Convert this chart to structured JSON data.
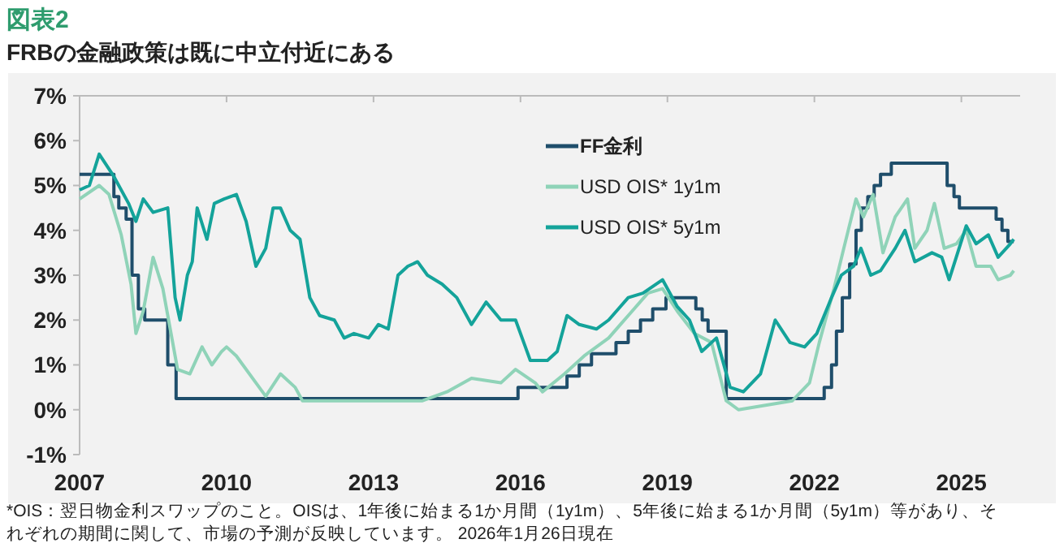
{
  "chart_data": {
    "type": "line",
    "title": "図表2",
    "subtitle": "FRBの金融政策は既に中立付近にある",
    "annotations": [
      "*OIS：翌日物金利スワップのこと。OISは、1年後に始まる1か月間（1y1m）、5年後に始まる1か月間（5y1m）等があり、それぞれの期間に関して、市場の予測が反映しています。 2026年1月26日現在"
    ],
    "xlim": [
      2007,
      2026.2
    ],
    "xticks": [
      2007,
      2010,
      2013,
      2016,
      2019,
      2022,
      2025
    ],
    "ylim": [
      -1,
      7
    ],
    "yticks": [
      {
        "value": -1,
        "label": "-1%"
      },
      {
        "value": 0,
        "label": "0%"
      },
      {
        "value": 1,
        "label": "1%"
      },
      {
        "value": 2,
        "label": "2%"
      },
      {
        "value": 3,
        "label": "3%"
      },
      {
        "value": 4,
        "label": "4%"
      },
      {
        "value": 5,
        "label": "5%"
      },
      {
        "value": 6,
        "label": "6%"
      },
      {
        "value": 7,
        "label": "7%"
      }
    ],
    "grid": false,
    "legend": "top right",
    "series": [
      {
        "name": "FF金利",
        "type": "step",
        "color": "#1f4e6b",
        "x": [
          2007,
          2007.7,
          2007.8,
          2007.95,
          2008.07,
          2008.2,
          2008.33,
          2008.8,
          2008.97,
          2015.95,
          2016.95,
          2017.2,
          2017.45,
          2017.95,
          2018.2,
          2018.45,
          2018.7,
          2018.97,
          2019.58,
          2019.71,
          2019.83,
          2020.2,
          2022.2,
          2022.35,
          2022.45,
          2022.57,
          2022.72,
          2022.85,
          2022.96,
          2023.09,
          2023.22,
          2023.35,
          2023.57,
          2024.71,
          2024.85,
          2024.96,
          2025.71,
          2025.83,
          2025.95,
          2026.07
        ],
        "values": [
          5.25,
          4.75,
          4.5,
          4.25,
          3.0,
          2.25,
          2.0,
          1.0,
          0.25,
          0.5,
          0.75,
          1.0,
          1.25,
          1.5,
          1.75,
          2.0,
          2.25,
          2.5,
          2.25,
          2.0,
          1.75,
          0.25,
          0.5,
          1.0,
          1.75,
          2.5,
          3.25,
          4.0,
          4.5,
          4.75,
          5.0,
          5.25,
          5.5,
          5.0,
          4.75,
          4.5,
          4.25,
          4.0,
          3.75,
          3.75
        ]
      },
      {
        "name": "USD OIS* 1y1m",
        "type": "line",
        "color": "#8fd3b8",
        "x": [
          2007,
          2007.4,
          2007.6,
          2007.85,
          2008.05,
          2008.15,
          2008.3,
          2008.5,
          2008.7,
          2008.9,
          2009.0,
          2009.25,
          2009.5,
          2009.7,
          2009.9,
          2010.0,
          2010.2,
          2010.6,
          2010.8,
          2011.1,
          2011.4,
          2011.55,
          2012.0,
          2013.1,
          2014.0,
          2014.5,
          2015.0,
          2015.6,
          2015.9,
          2016.3,
          2016.45,
          2016.9,
          2017.3,
          2017.8,
          2018.2,
          2018.6,
          2018.9,
          2019.2,
          2019.55,
          2019.9,
          2020.2,
          2020.45,
          2021.0,
          2021.55,
          2021.9,
          2022.1,
          2022.4,
          2022.6,
          2022.85,
          2023.0,
          2023.2,
          2023.4,
          2023.65,
          2023.9,
          2024.05,
          2024.3,
          2024.45,
          2024.65,
          2024.9,
          2025.1,
          2025.3,
          2025.6,
          2025.75,
          2026.0,
          2026.07
        ],
        "values": [
          4.7,
          5.0,
          4.8,
          3.9,
          2.8,
          1.7,
          2.2,
          3.4,
          2.7,
          1.5,
          0.9,
          0.8,
          1.4,
          1.0,
          1.3,
          1.4,
          1.2,
          0.6,
          0.3,
          0.8,
          0.5,
          0.2,
          0.2,
          0.2,
          0.2,
          0.4,
          0.7,
          0.6,
          0.9,
          0.6,
          0.4,
          0.8,
          1.2,
          1.6,
          2.1,
          2.6,
          2.7,
          2.2,
          1.7,
          1.5,
          0.2,
          0.0,
          0.1,
          0.2,
          0.6,
          1.5,
          2.7,
          3.6,
          4.7,
          4.3,
          4.8,
          3.5,
          4.3,
          4.7,
          3.6,
          4.0,
          4.6,
          3.6,
          3.7,
          4.0,
          3.2,
          3.2,
          2.9,
          3.0,
          3.1
        ]
      },
      {
        "name": "USD OIS* 5y1m",
        "type": "line",
        "color": "#14a39a",
        "x": [
          2007,
          2007.2,
          2007.4,
          2007.7,
          2008.0,
          2008.15,
          2008.3,
          2008.5,
          2008.8,
          2008.95,
          2009.05,
          2009.2,
          2009.3,
          2009.4,
          2009.6,
          2009.75,
          2009.95,
          2010.2,
          2010.4,
          2010.6,
          2010.8,
          2010.95,
          2011.1,
          2011.3,
          2011.5,
          2011.7,
          2011.9,
          2012.2,
          2012.4,
          2012.6,
          2012.9,
          2013.1,
          2013.3,
          2013.5,
          2013.7,
          2013.9,
          2014.1,
          2014.4,
          2014.7,
          2015.0,
          2015.3,
          2015.6,
          2015.9,
          2016.1,
          2016.2,
          2016.55,
          2016.75,
          2016.95,
          2017.2,
          2017.55,
          2017.8,
          2018.2,
          2018.5,
          2018.9,
          2019.2,
          2019.45,
          2019.7,
          2020.0,
          2020.28,
          2020.55,
          2020.9,
          2021.2,
          2021.5,
          2021.8,
          2022.05,
          2022.35,
          2022.55,
          2022.8,
          2022.95,
          2023.15,
          2023.35,
          2023.65,
          2023.85,
          2024.05,
          2024.4,
          2024.6,
          2024.75,
          2025.1,
          2025.3,
          2025.55,
          2025.75,
          2026.0,
          2026.07
        ],
        "values": [
          4.9,
          5.0,
          5.7,
          5.2,
          4.6,
          4.2,
          4.7,
          4.4,
          4.5,
          2.5,
          2.0,
          3.0,
          3.3,
          4.5,
          3.8,
          4.6,
          4.7,
          4.8,
          4.2,
          3.2,
          3.6,
          4.5,
          4.5,
          4.0,
          3.8,
          2.5,
          2.1,
          2.0,
          1.6,
          1.7,
          1.6,
          1.9,
          1.8,
          3.0,
          3.2,
          3.3,
          3.0,
          2.8,
          2.5,
          1.9,
          2.4,
          2.0,
          2.0,
          1.4,
          1.1,
          1.1,
          1.3,
          2.1,
          1.9,
          1.8,
          2.0,
          2.5,
          2.6,
          2.9,
          2.3,
          2.0,
          1.3,
          1.6,
          0.5,
          0.4,
          0.8,
          2.0,
          1.5,
          1.4,
          1.7,
          2.5,
          3.0,
          3.2,
          3.6,
          3.0,
          3.1,
          3.6,
          4.0,
          3.3,
          3.5,
          3.4,
          2.9,
          4.1,
          3.7,
          3.9,
          3.4,
          3.7,
          3.8
        ]
      }
    ]
  }
}
